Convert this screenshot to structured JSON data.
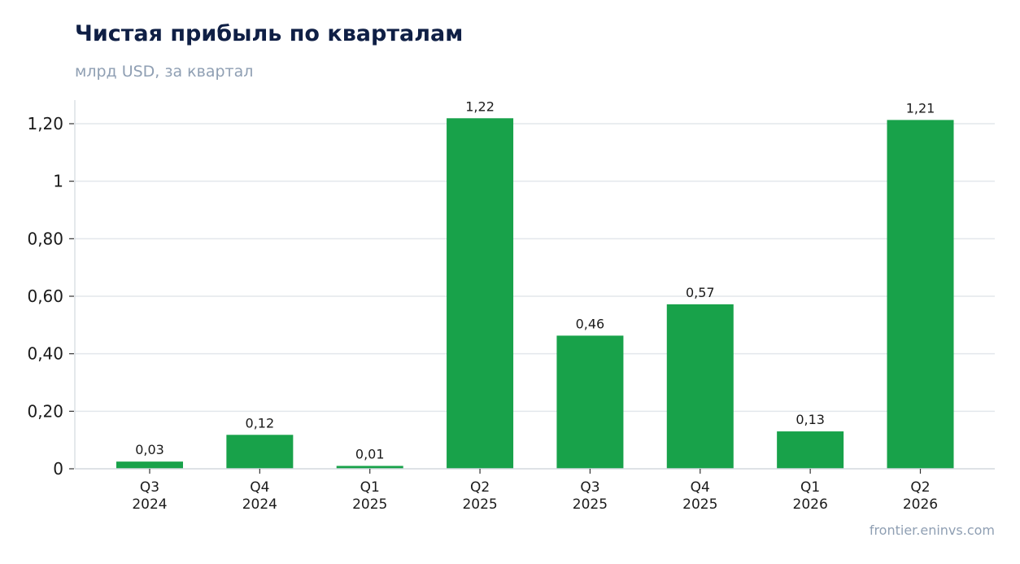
{
  "chart_data": {
    "type": "bar",
    "title": "Чистая прибыль по кварталам",
    "subtitle": "млрд USD, за квартал",
    "categories": [
      [
        "Q3",
        "2024"
      ],
      [
        "Q4",
        "2024"
      ],
      [
        "Q1",
        "2025"
      ],
      [
        "Q2",
        "2025"
      ],
      [
        "Q3",
        "2025"
      ],
      [
        "Q4",
        "2025"
      ],
      [
        "Q1",
        "2026"
      ],
      [
        "Q2",
        "2026"
      ]
    ],
    "values": [
      0.025,
      0.118,
      0.01,
      1.219,
      0.463,
      0.572,
      0.13,
      1.213
    ],
    "data_labels": [
      "0,03",
      "0,12",
      "0,01",
      "1,22",
      "0,46",
      "0,57",
      "0,13",
      "1,21"
    ],
    "ylim": [
      0,
      1.28
    ],
    "yticks": [
      0,
      0.2,
      0.4,
      0.6,
      0.8,
      1,
      1.2
    ],
    "ytick_labels": [
      "0",
      "0,20",
      "0,40",
      "0,60",
      "0,80",
      "1",
      "1,20"
    ],
    "xlabel": "",
    "ylabel": "",
    "grid": "horizontal",
    "colors": {
      "bar": "#18a24a",
      "grid": "#e3e7ec",
      "axis": "#d3d8de",
      "text": "#1a1a1a",
      "title": "#0f1f45",
      "muted": "#8f9fb3"
    }
  },
  "source": "frontier.eninvs.com"
}
